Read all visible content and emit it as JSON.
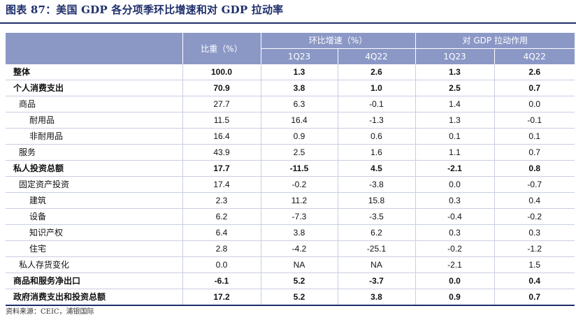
{
  "title": "图表 87：美国 GDP 各分项季环比增速和对 GDP 拉动率",
  "header": {
    "weight_label": "比重（%）",
    "growth_group": "环比增速（%）",
    "contribution_group": "对 GDP 拉动作用",
    "growth_q1": "1Q23",
    "growth_q2": "4Q22",
    "contrib_q1": "1Q23",
    "contrib_q2": "4Q22"
  },
  "rows": [
    {
      "label": "整体",
      "weight": "100.0",
      "g1": "1.3",
      "g2": "2.6",
      "c1": "1.3",
      "c2": "2.6"
    },
    {
      "label": "个人消费支出",
      "weight": "70.9",
      "g1": "3.8",
      "g2": "1.0",
      "c1": "2.5",
      "c2": "0.7"
    },
    {
      "label": "商品",
      "weight": "27.7",
      "g1": "6.3",
      "g2": "-0.1",
      "c1": "1.4",
      "c2": "0.0"
    },
    {
      "label": "耐用品",
      "weight": "11.5",
      "g1": "16.4",
      "g2": "-1.3",
      "c1": "1.3",
      "c2": "-0.1"
    },
    {
      "label": "非耐用品",
      "weight": "16.4",
      "g1": "0.9",
      "g2": "0.6",
      "c1": "0.1",
      "c2": "0.1"
    },
    {
      "label": "服务",
      "weight": "43.9",
      "g1": "2.5",
      "g2": "1.6",
      "c1": "1.1",
      "c2": "0.7"
    },
    {
      "label": "私人投资总额",
      "weight": "17.7",
      "g1": "-11.5",
      "g2": "4.5",
      "c1": "-2.1",
      "c2": "0.8"
    },
    {
      "label": "固定资产投资",
      "weight": "17.4",
      "g1": "-0.2",
      "g2": "-3.8",
      "c1": "0.0",
      "c2": "-0.7"
    },
    {
      "label": "建筑",
      "weight": "2.3",
      "g1": "11.2",
      "g2": "15.8",
      "c1": "0.3",
      "c2": "0.4"
    },
    {
      "label": "设备",
      "weight": "6.2",
      "g1": "-7.3",
      "g2": "-3.5",
      "c1": "-0.4",
      "c2": "-0.2"
    },
    {
      "label": "知识产权",
      "weight": "6.4",
      "g1": "3.8",
      "g2": "6.2",
      "c1": "0.3",
      "c2": "0.3"
    },
    {
      "label": "住宅",
      "weight": "2.8",
      "g1": "-4.2",
      "g2": "-25.1",
      "c1": "-0.2",
      "c2": "-1.2"
    },
    {
      "label": "私人存货变化",
      "weight": "0.0",
      "g1": "NA",
      "g2": "NA",
      "c1": "-2.1",
      "c2": "1.5"
    },
    {
      "label": "商品和服务净出口",
      "weight": "-6.1",
      "g1": "5.2",
      "g2": "-3.7",
      "c1": "0.0",
      "c2": "0.4"
    },
    {
      "label": "政府消费支出和投资总额",
      "weight": "17.2",
      "g1": "5.2",
      "g2": "3.8",
      "c1": "0.9",
      "c2": "0.7"
    }
  ],
  "source": "资料来源：CEIC，浦银国际"
}
